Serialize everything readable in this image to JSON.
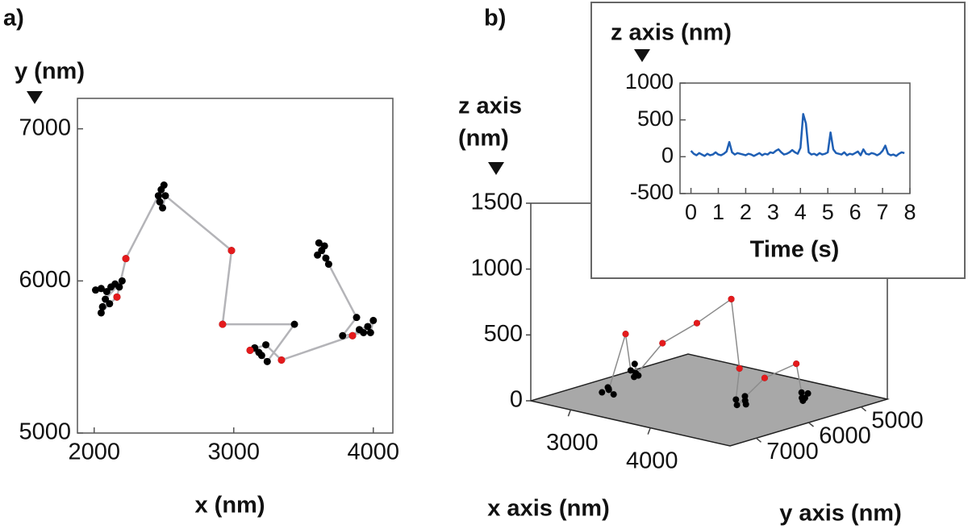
{
  "chart_data": [
    {
      "type": "line",
      "panel_label": "a)",
      "x_label": "x (nm)",
      "y_label": "y (nm)",
      "xlim": [
        1880,
        4140
      ],
      "ylim": [
        5000,
        7200
      ],
      "xticks": [
        2000,
        3000,
        4000
      ],
      "yticks": [
        5000,
        6000,
        7000
      ],
      "series": [
        {
          "color": "#b4b4b8",
          "marker_color": "#000000",
          "x": [
            2010,
            2050,
            2090,
            2120,
            2150,
            2180,
            2200,
            2080,
            2060,
            2050,
            2110,
            2163,
            2227,
            2460,
            2480,
            2500,
            2470,
            2490,
            2510,
            2984,
            2920,
            3435,
            3240,
            3200,
            3150,
            3180,
            3117,
            3230,
            3342,
            3851,
            3900,
            3960,
            4000,
            3980,
            3930,
            3780,
            3880,
            3680,
            3660,
            3630,
            3610,
            3650,
            3600
          ],
          "values": [
            5940,
            5950,
            5930,
            5960,
            5980,
            5960,
            6000,
            5880,
            5830,
            5790,
            5850,
            5894,
            6147,
            6560,
            6600,
            6630,
            6520,
            6480,
            6560,
            6200,
            5715,
            5715,
            5470,
            5510,
            5560,
            5530,
            5544,
            5580,
            5480,
            5640,
            5680,
            5700,
            5740,
            5660,
            5660,
            5640,
            5760,
            6110,
            6150,
            6200,
            6250,
            6230,
            6170
          ]
        },
        {
          "marker_color": "#e41a1c",
          "x": [
            2163,
            2227,
            2984,
            2920,
            3117,
            3342,
            3851
          ],
          "values": [
            5894,
            6147,
            6200,
            5715,
            5544,
            5480,
            5640
          ]
        }
      ]
    },
    {
      "type": "scatter3d",
      "panel_label": "b)",
      "x_label": "x axis (nm)",
      "y_label": "y axis (nm)",
      "z_label": [
        "z axis",
        "(nm)"
      ],
      "xlim": [
        2500,
        5000
      ],
      "ylim": [
        4500,
        7500
      ],
      "zlim": [
        0,
        1500
      ],
      "xticks": [
        3000,
        4000
      ],
      "yticks": [
        5000,
        6000,
        7000
      ],
      "zticks": [
        0,
        500,
        1000,
        1500
      ],
      "floor_color": "#a8a8a8",
      "series": [
        {
          "color": "#8c8c8c",
          "marker_color": "#000000",
          "x": [
            2900,
            2950,
            3000,
            2980,
            2920,
            2900,
            2800,
            2850,
            2830,
            2870,
            2790,
            3100,
            3400,
            3700,
            4000,
            4120,
            4180,
            4200,
            4150,
            4100,
            4250,
            4450,
            4450,
            4500,
            4520,
            4480,
            4550
          ],
          "y": [
            6750,
            6700,
            6680,
            6760,
            6650,
            6300,
            6050,
            5980,
            6020,
            6060,
            5970,
            5900,
            5700,
            5500,
            5800,
            6050,
            5950,
            6000,
            5920,
            6000,
            5700,
            5400,
            5300,
            5350,
            5400,
            5280,
            5330
          ],
          "z": [
            30,
            60,
            20,
            80,
            40,
            420,
            100,
            60,
            150,
            90,
            40,
            330,
            500,
            700,
            250,
            60,
            20,
            90,
            40,
            10,
            200,
            300,
            70,
            20,
            50,
            30,
            80
          ]
        },
        {
          "marker_color": "#e41a1c",
          "x": [
            2900,
            3100,
            3400,
            3700,
            4000,
            4250,
            4450
          ],
          "y": [
            6300,
            5900,
            5700,
            5500,
            5800,
            5700,
            5400
          ],
          "z": [
            420,
            330,
            500,
            700,
            250,
            200,
            300
          ]
        }
      ]
    },
    {
      "type": "line",
      "x_label": "Time (s)",
      "y_label": "z axis (nm)",
      "xlim": [
        -0.4,
        8
      ],
      "ylim": [
        -500,
        1000
      ],
      "xticks": [
        0,
        1,
        2,
        3,
        4,
        5,
        6,
        7,
        8
      ],
      "yticks": [
        -500,
        0,
        500,
        1000
      ],
      "series": [
        {
          "color": "#1f5fb4",
          "x": [
            0,
            0.1,
            0.2,
            0.3,
            0.4,
            0.5,
            0.6,
            0.7,
            0.8,
            0.9,
            1,
            1.1,
            1.2,
            1.3,
            1.4,
            1.5,
            1.6,
            1.7,
            1.8,
            1.9,
            2,
            2.1,
            2.2,
            2.3,
            2.4,
            2.5,
            2.6,
            2.7,
            2.8,
            2.9,
            3,
            3.1,
            3.2,
            3.3,
            3.4,
            3.5,
            3.6,
            3.7,
            3.8,
            3.9,
            4,
            4.1,
            4.2,
            4.3,
            4.4,
            4.5,
            4.6,
            4.7,
            4.8,
            4.9,
            5,
            5.1,
            5.2,
            5.3,
            5.4,
            5.5,
            5.6,
            5.7,
            5.8,
            5.9,
            6,
            6.1,
            6.2,
            6.3,
            6.4,
            6.5,
            6.6,
            6.7,
            6.8,
            6.9,
            7,
            7.1,
            7.2,
            7.3,
            7.4,
            7.5,
            7.6,
            7.7,
            7.8
          ],
          "values": [
            80,
            40,
            20,
            50,
            30,
            10,
            40,
            20,
            30,
            60,
            30,
            20,
            40,
            70,
            200,
            60,
            30,
            50,
            40,
            30,
            20,
            40,
            30,
            10,
            30,
            50,
            20,
            40,
            30,
            60,
            50,
            80,
            100,
            60,
            30,
            40,
            60,
            90,
            60,
            40,
            120,
            580,
            450,
            60,
            30,
            40,
            20,
            50,
            30,
            40,
            60,
            330,
            100,
            50,
            40,
            30,
            60,
            20,
            40,
            30,
            50,
            70,
            20,
            100,
            40,
            30,
            50,
            40,
            20,
            40,
            80,
            150,
            40,
            20,
            30,
            10,
            40,
            60,
            50
          ]
        }
      ]
    }
  ]
}
